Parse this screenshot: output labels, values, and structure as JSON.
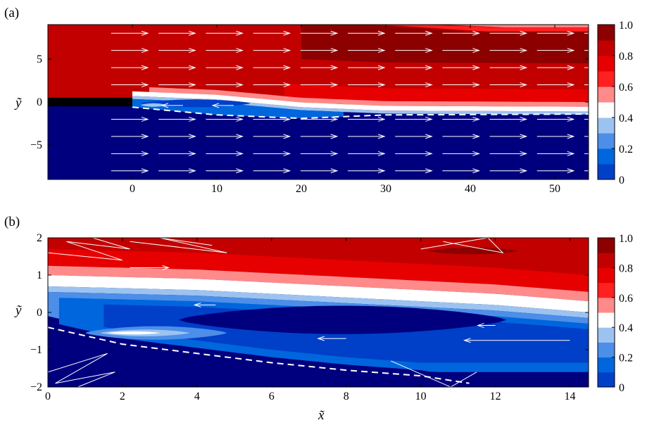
{
  "colors": {
    "levels": [
      "#00007f",
      "#003fc8",
      "#0066dd",
      "#4c8ee8",
      "#9cc3f0",
      "#ffffff",
      "#ff8a8a",
      "#ff2020",
      "#e60000",
      "#c20000",
      "#8c0000"
    ],
    "plate": "#000000",
    "arrows": "#ffffff"
  },
  "chart_data": [
    {
      "type": "heatmap",
      "panel_label": "(a)",
      "ylabel": "ỹ",
      "xlabel": "",
      "xlim": [
        -10,
        54
      ],
      "ylim": [
        -9,
        9
      ],
      "xticks": [
        0,
        10,
        20,
        30,
        40,
        50
      ],
      "xtick_labels": [
        "0",
        "10",
        "20",
        "30",
        "40",
        "50"
      ],
      "yticks": [
        5,
        0,
        -5
      ],
      "ytick_labels": [
        "5",
        "0",
        "−5"
      ],
      "colorbar": {
        "range": [
          0,
          1
        ],
        "levels": 10,
        "ticks": [
          1.0,
          0.8,
          0.6,
          0.4,
          0.2,
          0
        ],
        "tick_labels": [
          "1.0",
          "0.8",
          "0.6",
          "0.4",
          "0.2",
          "0"
        ]
      },
      "plate": {
        "x": [
          -10,
          0
        ],
        "y": 0
      },
      "upper_value": 0.9,
      "lower_value": 0.05,
      "shear_layer_center": [
        [
          0,
          0.8
        ],
        [
          10,
          0.4
        ],
        [
          20,
          -0.5
        ],
        [
          30,
          -0.9
        ],
        [
          54,
          -1.0
        ]
      ],
      "separation_line": [
        [
          0,
          -0.6
        ],
        [
          10,
          -1.5
        ],
        [
          20,
          -1.9
        ],
        [
          30,
          -1.5
        ],
        [
          54,
          -1.4
        ]
      ],
      "arrow_rows_y": [
        8,
        6,
        4,
        2,
        -2,
        -4,
        -6,
        -8
      ]
    },
    {
      "type": "heatmap",
      "panel_label": "(b)",
      "xlabel": "x̃",
      "ylabel": "ỹ",
      "xlim": [
        0,
        14.5
      ],
      "ylim": [
        -2,
        2
      ],
      "xticks": [
        0,
        2,
        4,
        6,
        8,
        10,
        12,
        14
      ],
      "xtick_labels": [
        "0",
        "2",
        "4",
        "6",
        "8",
        "10",
        "12",
        "14"
      ],
      "yticks": [
        2,
        1,
        0,
        -1,
        -2
      ],
      "ytick_labels": [
        "2",
        "1",
        "0",
        "−1",
        "−2"
      ],
      "colorbar": {
        "range": [
          0,
          1
        ],
        "levels": 10,
        "ticks": [
          1.0,
          0.8,
          0.6,
          0.4,
          0.2,
          0
        ],
        "tick_labels": [
          "1.0",
          "0.8",
          "0.6",
          "0.4",
          "0.2",
          "0"
        ]
      },
      "shear_layer_center": [
        [
          0,
          0.85
        ],
        [
          4,
          0.75
        ],
        [
          8,
          0.55
        ],
        [
          12,
          0.35
        ],
        [
          14.5,
          0.15
        ]
      ],
      "recirculation_bubble": {
        "x": [
          3.5,
          12.3
        ],
        "y_center": -0.2
      },
      "near_wall_bubble": {
        "x": [
          1.0,
          4.8
        ],
        "y_center": -0.55
      },
      "separation_line": [
        [
          0,
          -0.4
        ],
        [
          2,
          -0.85
        ],
        [
          4,
          -1.1
        ],
        [
          6,
          -1.35
        ],
        [
          8,
          -1.55
        ],
        [
          10,
          -1.7
        ],
        [
          11.3,
          -1.9
        ]
      ]
    }
  ]
}
